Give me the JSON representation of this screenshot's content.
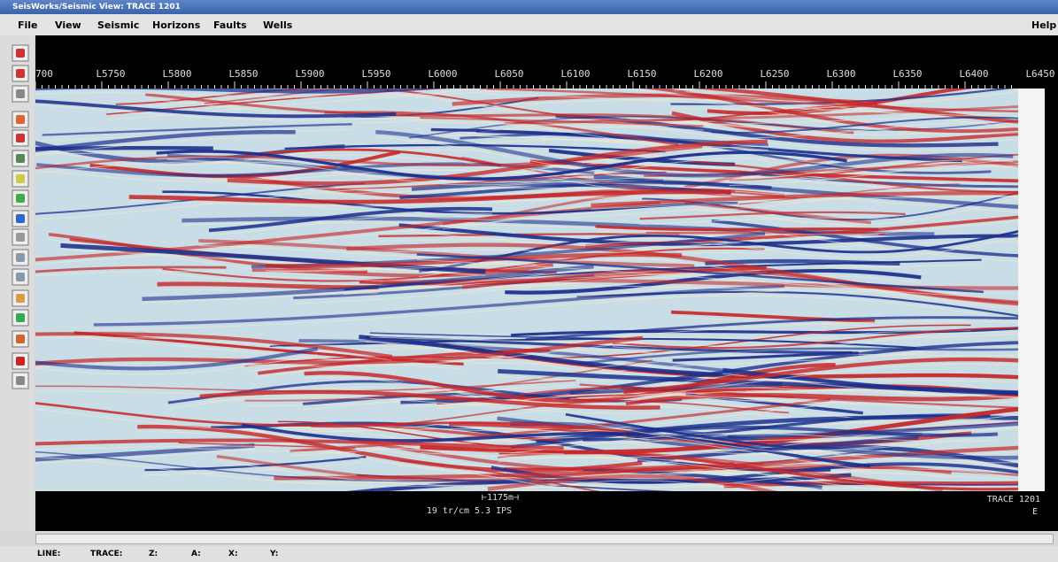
{
  "window": {
    "title": "SeisWorks/Seismic View: TRACE 1201"
  },
  "menu": [
    "File",
    "View",
    "Seismic",
    "Horizons",
    "Faults",
    "Wells"
  ],
  "help_menu": "Help",
  "line_labels": [
    "700",
    "L5750",
    "L5800",
    "L5850",
    "L5900",
    "L5950",
    "L6000",
    "L6050",
    "L6100",
    "L6150",
    "L6200",
    "L6250",
    "L6300",
    "L6350",
    "L6400",
    "L6450"
  ],
  "scale_bar": "⊢1175m⊣",
  "scale_info": "19 tr/cm 5.3 IPS",
  "trace_label": "TRACE 1201",
  "direction": "E",
  "status": [
    "LINE:",
    "TRACE:",
    "Z:",
    "A:",
    "X:",
    "Y:"
  ]
}
